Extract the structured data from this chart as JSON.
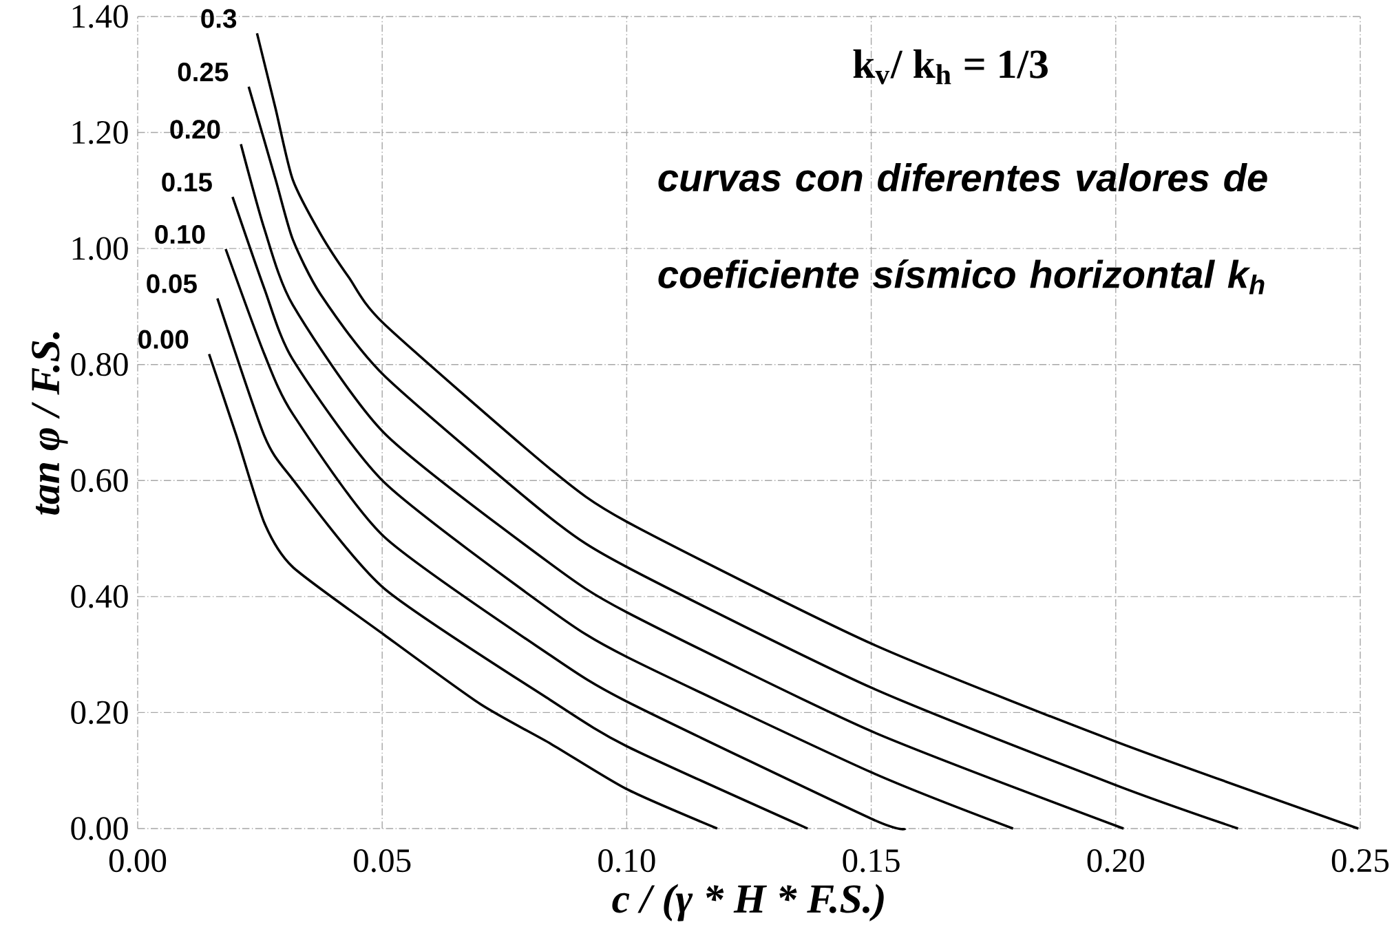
{
  "chart_data": {
    "type": "line",
    "xlabel": "c / (γ * H * F.S.)",
    "ylabel": "tan φ / F.S.",
    "annotations": [
      "k$_{v}$/ k$_{h}$ = 1/3",
      "curvas con diferentes valores de coeficiente sísmico horizontal k$_{h}$"
    ],
    "xlim": [
      0,
      0.25
    ],
    "ylim": [
      0,
      1.4
    ],
    "xticks": [
      {
        "value": 0,
        "label": "0.00"
      },
      {
        "value": 0.05,
        "label": "0.05"
      },
      {
        "value": 0.1,
        "label": "0.10"
      },
      {
        "value": 0.15,
        "label": "0.15"
      },
      {
        "value": 0.2,
        "label": "0.20"
      },
      {
        "value": 0.25,
        "label": "0.25"
      }
    ],
    "yticks": [
      {
        "value": 0,
        "label": "0.00"
      },
      {
        "value": 0.2,
        "label": "0.20"
      },
      {
        "value": 0.4,
        "label": "0.40"
      },
      {
        "value": 0.6,
        "label": "0.60"
      },
      {
        "value": 0.8,
        "label": "0.80"
      },
      {
        "value": 1.0,
        "label": "1.00"
      },
      {
        "value": 1.2,
        "label": "1.20"
      },
      {
        "value": 1.4,
        "label": "1.40"
      }
    ],
    "grid": true,
    "legend": false,
    "marker": "none",
    "line_style": "solid",
    "series": [
      {
        "name": "0.00",
        "color": "#000000",
        "x": [
          0.0146,
          0.0202,
          0.0259,
          0.0317,
          0.0504,
          0.07,
          0.0845,
          0.1,
          0.1185
        ],
        "values": [
          0.818,
          0.677,
          0.527,
          0.451,
          0.334,
          0.215,
          0.146,
          0.068,
          0
        ]
      },
      {
        "name": "0.05",
        "color": "#000000",
        "x": [
          0.0163,
          0.0259,
          0.0317,
          0.0504,
          0.0845,
          0.1,
          0.137
        ],
        "values": [
          0.914,
          0.677,
          0.602,
          0.414,
          0.221,
          0.142,
          0
        ]
      },
      {
        "name": "0.10",
        "color": "#000000",
        "x": [
          0.018,
          0.0259,
          0.0317,
          0.0504,
          0.0845,
          0.1,
          0.15,
          0.157
        ],
        "values": [
          0.999,
          0.818,
          0.715,
          0.503,
          0.298,
          0.219,
          0.017,
          0
        ]
      },
      {
        "name": "0.15",
        "color": "#000000",
        "x": [
          0.0194,
          0.0259,
          0.0317,
          0.0504,
          0.0845,
          0.1,
          0.15,
          0.179
        ],
        "values": [
          1.089,
          0.931,
          0.809,
          0.597,
          0.376,
          0.296,
          0.097,
          0
        ]
      },
      {
        "name": "0.20",
        "color": "#000000",
        "x": [
          0.0211,
          0.0259,
          0.0317,
          0.0504,
          0.0845,
          0.1,
          0.15,
          0.2016
        ],
        "values": [
          1.18,
          1.034,
          0.903,
          0.682,
          0.456,
          0.373,
          0.168,
          0
        ]
      },
      {
        "name": "0.25",
        "color": "#000000",
        "x": [
          0.0227,
          0.0282,
          0.0317,
          0.0374,
          0.0504,
          0.0845,
          0.1,
          0.15,
          0.2,
          0.225
        ],
        "values": [
          1.279,
          1.119,
          1.016,
          0.921,
          0.781,
          0.535,
          0.451,
          0.243,
          0.075,
          0
        ]
      },
      {
        "name": "0.3",
        "color": "#000000",
        "x": [
          0.0244,
          0.0282,
          0.0317,
          0.0374,
          0.0432,
          0.0504,
          0.0845,
          0.1,
          0.15,
          0.2,
          0.2496
        ],
        "values": [
          1.371,
          1.241,
          1.119,
          1.025,
          0.95,
          0.87,
          0.619,
          0.529,
          0.319,
          0.15,
          0
        ]
      }
    ]
  }
}
